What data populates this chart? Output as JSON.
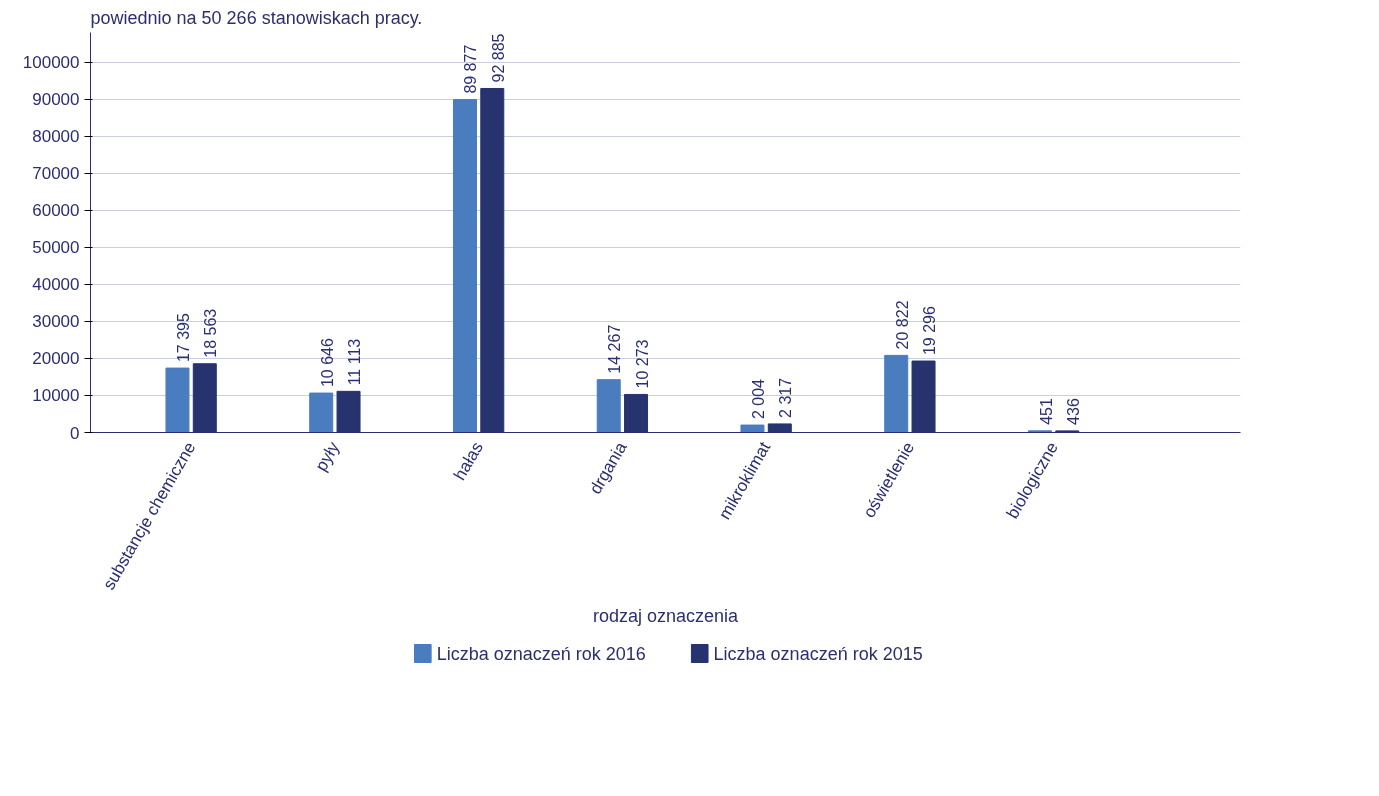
{
  "chart_data": {
    "type": "bar",
    "xlabel": "rodzaj oznaczenia",
    "annotations": [
      "powiednio na 50 266 stanowiskach pracy."
    ],
    "categories": [
      "substancje chemiczne",
      "pyły",
      "hałas",
      "drgania",
      "mikroklimat",
      "oświetlenie",
      "biologiczne"
    ],
    "series": [
      {
        "name": "Liczba oznaczeń rok 2016",
        "color": "#4a7dbf",
        "values": [
          17395,
          10646,
          89877,
          14267,
          2004,
          20822,
          451
        ]
      },
      {
        "name": "Liczba oznaczeń rok 2015",
        "color": "#26336e",
        "values": [
          18563,
          11113,
          92885,
          10273,
          2317,
          19296,
          436
        ]
      }
    ],
    "ylim": [
      0,
      108000
    ],
    "yticks": [
      0,
      10000,
      20000,
      30000,
      40000,
      50000,
      60000,
      70000,
      80000,
      90000,
      100000
    ],
    "grid": "y",
    "legend": "bottom",
    "data_labels": true
  }
}
